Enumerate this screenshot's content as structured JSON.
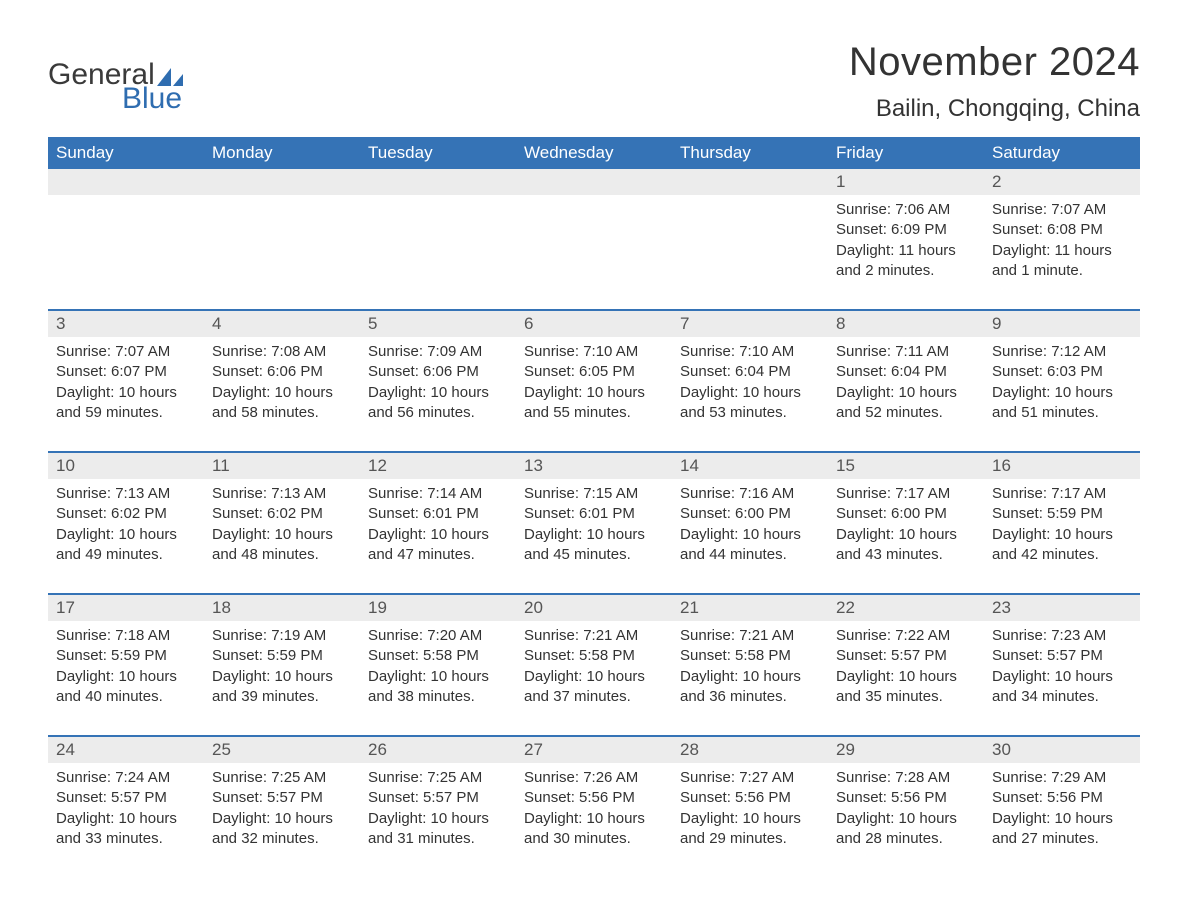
{
  "brand": {
    "word1": "General",
    "word2": "Blue",
    "word1_color": "#3a3a3a",
    "word2_color": "#2f6db0",
    "sail_color": "#2f6db0"
  },
  "header": {
    "month_title": "November 2024",
    "location": "Bailin, Chongqing, China"
  },
  "colors": {
    "header_bg": "#3573b6",
    "header_text": "#ffffff",
    "week_border": "#3573b6",
    "daynum_bg": "#ececec",
    "daynum_text": "#555555",
    "body_text": "#333333",
    "page_bg": "#ffffff"
  },
  "layout": {
    "columns": 7,
    "header_fontsize": 17,
    "daynum_fontsize": 17,
    "body_fontsize": 15,
    "month_title_fontsize": 40,
    "location_fontsize": 24
  },
  "weekdays": [
    "Sunday",
    "Monday",
    "Tuesday",
    "Wednesday",
    "Thursday",
    "Friday",
    "Saturday"
  ],
  "weeks": [
    [
      {
        "empty": true
      },
      {
        "empty": true
      },
      {
        "empty": true
      },
      {
        "empty": true
      },
      {
        "empty": true
      },
      {
        "num": "1",
        "sunrise": "Sunrise: 7:06 AM",
        "sunset": "Sunset: 6:09 PM",
        "daylight": "Daylight: 11 hours and 2 minutes."
      },
      {
        "num": "2",
        "sunrise": "Sunrise: 7:07 AM",
        "sunset": "Sunset: 6:08 PM",
        "daylight": "Daylight: 11 hours and 1 minute."
      }
    ],
    [
      {
        "num": "3",
        "sunrise": "Sunrise: 7:07 AM",
        "sunset": "Sunset: 6:07 PM",
        "daylight": "Daylight: 10 hours and 59 minutes."
      },
      {
        "num": "4",
        "sunrise": "Sunrise: 7:08 AM",
        "sunset": "Sunset: 6:06 PM",
        "daylight": "Daylight: 10 hours and 58 minutes."
      },
      {
        "num": "5",
        "sunrise": "Sunrise: 7:09 AM",
        "sunset": "Sunset: 6:06 PM",
        "daylight": "Daylight: 10 hours and 56 minutes."
      },
      {
        "num": "6",
        "sunrise": "Sunrise: 7:10 AM",
        "sunset": "Sunset: 6:05 PM",
        "daylight": "Daylight: 10 hours and 55 minutes."
      },
      {
        "num": "7",
        "sunrise": "Sunrise: 7:10 AM",
        "sunset": "Sunset: 6:04 PM",
        "daylight": "Daylight: 10 hours and 53 minutes."
      },
      {
        "num": "8",
        "sunrise": "Sunrise: 7:11 AM",
        "sunset": "Sunset: 6:04 PM",
        "daylight": "Daylight: 10 hours and 52 minutes."
      },
      {
        "num": "9",
        "sunrise": "Sunrise: 7:12 AM",
        "sunset": "Sunset: 6:03 PM",
        "daylight": "Daylight: 10 hours and 51 minutes."
      }
    ],
    [
      {
        "num": "10",
        "sunrise": "Sunrise: 7:13 AM",
        "sunset": "Sunset: 6:02 PM",
        "daylight": "Daylight: 10 hours and 49 minutes."
      },
      {
        "num": "11",
        "sunrise": "Sunrise: 7:13 AM",
        "sunset": "Sunset: 6:02 PM",
        "daylight": "Daylight: 10 hours and 48 minutes."
      },
      {
        "num": "12",
        "sunrise": "Sunrise: 7:14 AM",
        "sunset": "Sunset: 6:01 PM",
        "daylight": "Daylight: 10 hours and 47 minutes."
      },
      {
        "num": "13",
        "sunrise": "Sunrise: 7:15 AM",
        "sunset": "Sunset: 6:01 PM",
        "daylight": "Daylight: 10 hours and 45 minutes."
      },
      {
        "num": "14",
        "sunrise": "Sunrise: 7:16 AM",
        "sunset": "Sunset: 6:00 PM",
        "daylight": "Daylight: 10 hours and 44 minutes."
      },
      {
        "num": "15",
        "sunrise": "Sunrise: 7:17 AM",
        "sunset": "Sunset: 6:00 PM",
        "daylight": "Daylight: 10 hours and 43 minutes."
      },
      {
        "num": "16",
        "sunrise": "Sunrise: 7:17 AM",
        "sunset": "Sunset: 5:59 PM",
        "daylight": "Daylight: 10 hours and 42 minutes."
      }
    ],
    [
      {
        "num": "17",
        "sunrise": "Sunrise: 7:18 AM",
        "sunset": "Sunset: 5:59 PM",
        "daylight": "Daylight: 10 hours and 40 minutes."
      },
      {
        "num": "18",
        "sunrise": "Sunrise: 7:19 AM",
        "sunset": "Sunset: 5:59 PM",
        "daylight": "Daylight: 10 hours and 39 minutes."
      },
      {
        "num": "19",
        "sunrise": "Sunrise: 7:20 AM",
        "sunset": "Sunset: 5:58 PM",
        "daylight": "Daylight: 10 hours and 38 minutes."
      },
      {
        "num": "20",
        "sunrise": "Sunrise: 7:21 AM",
        "sunset": "Sunset: 5:58 PM",
        "daylight": "Daylight: 10 hours and 37 minutes."
      },
      {
        "num": "21",
        "sunrise": "Sunrise: 7:21 AM",
        "sunset": "Sunset: 5:58 PM",
        "daylight": "Daylight: 10 hours and 36 minutes."
      },
      {
        "num": "22",
        "sunrise": "Sunrise: 7:22 AM",
        "sunset": "Sunset: 5:57 PM",
        "daylight": "Daylight: 10 hours and 35 minutes."
      },
      {
        "num": "23",
        "sunrise": "Sunrise: 7:23 AM",
        "sunset": "Sunset: 5:57 PM",
        "daylight": "Daylight: 10 hours and 34 minutes."
      }
    ],
    [
      {
        "num": "24",
        "sunrise": "Sunrise: 7:24 AM",
        "sunset": "Sunset: 5:57 PM",
        "daylight": "Daylight: 10 hours and 33 minutes."
      },
      {
        "num": "25",
        "sunrise": "Sunrise: 7:25 AM",
        "sunset": "Sunset: 5:57 PM",
        "daylight": "Daylight: 10 hours and 32 minutes."
      },
      {
        "num": "26",
        "sunrise": "Sunrise: 7:25 AM",
        "sunset": "Sunset: 5:57 PM",
        "daylight": "Daylight: 10 hours and 31 minutes."
      },
      {
        "num": "27",
        "sunrise": "Sunrise: 7:26 AM",
        "sunset": "Sunset: 5:56 PM",
        "daylight": "Daylight: 10 hours and 30 minutes."
      },
      {
        "num": "28",
        "sunrise": "Sunrise: 7:27 AM",
        "sunset": "Sunset: 5:56 PM",
        "daylight": "Daylight: 10 hours and 29 minutes."
      },
      {
        "num": "29",
        "sunrise": "Sunrise: 7:28 AM",
        "sunset": "Sunset: 5:56 PM",
        "daylight": "Daylight: 10 hours and 28 minutes."
      },
      {
        "num": "30",
        "sunrise": "Sunrise: 7:29 AM",
        "sunset": "Sunset: 5:56 PM",
        "daylight": "Daylight: 10 hours and 27 minutes."
      }
    ]
  ]
}
